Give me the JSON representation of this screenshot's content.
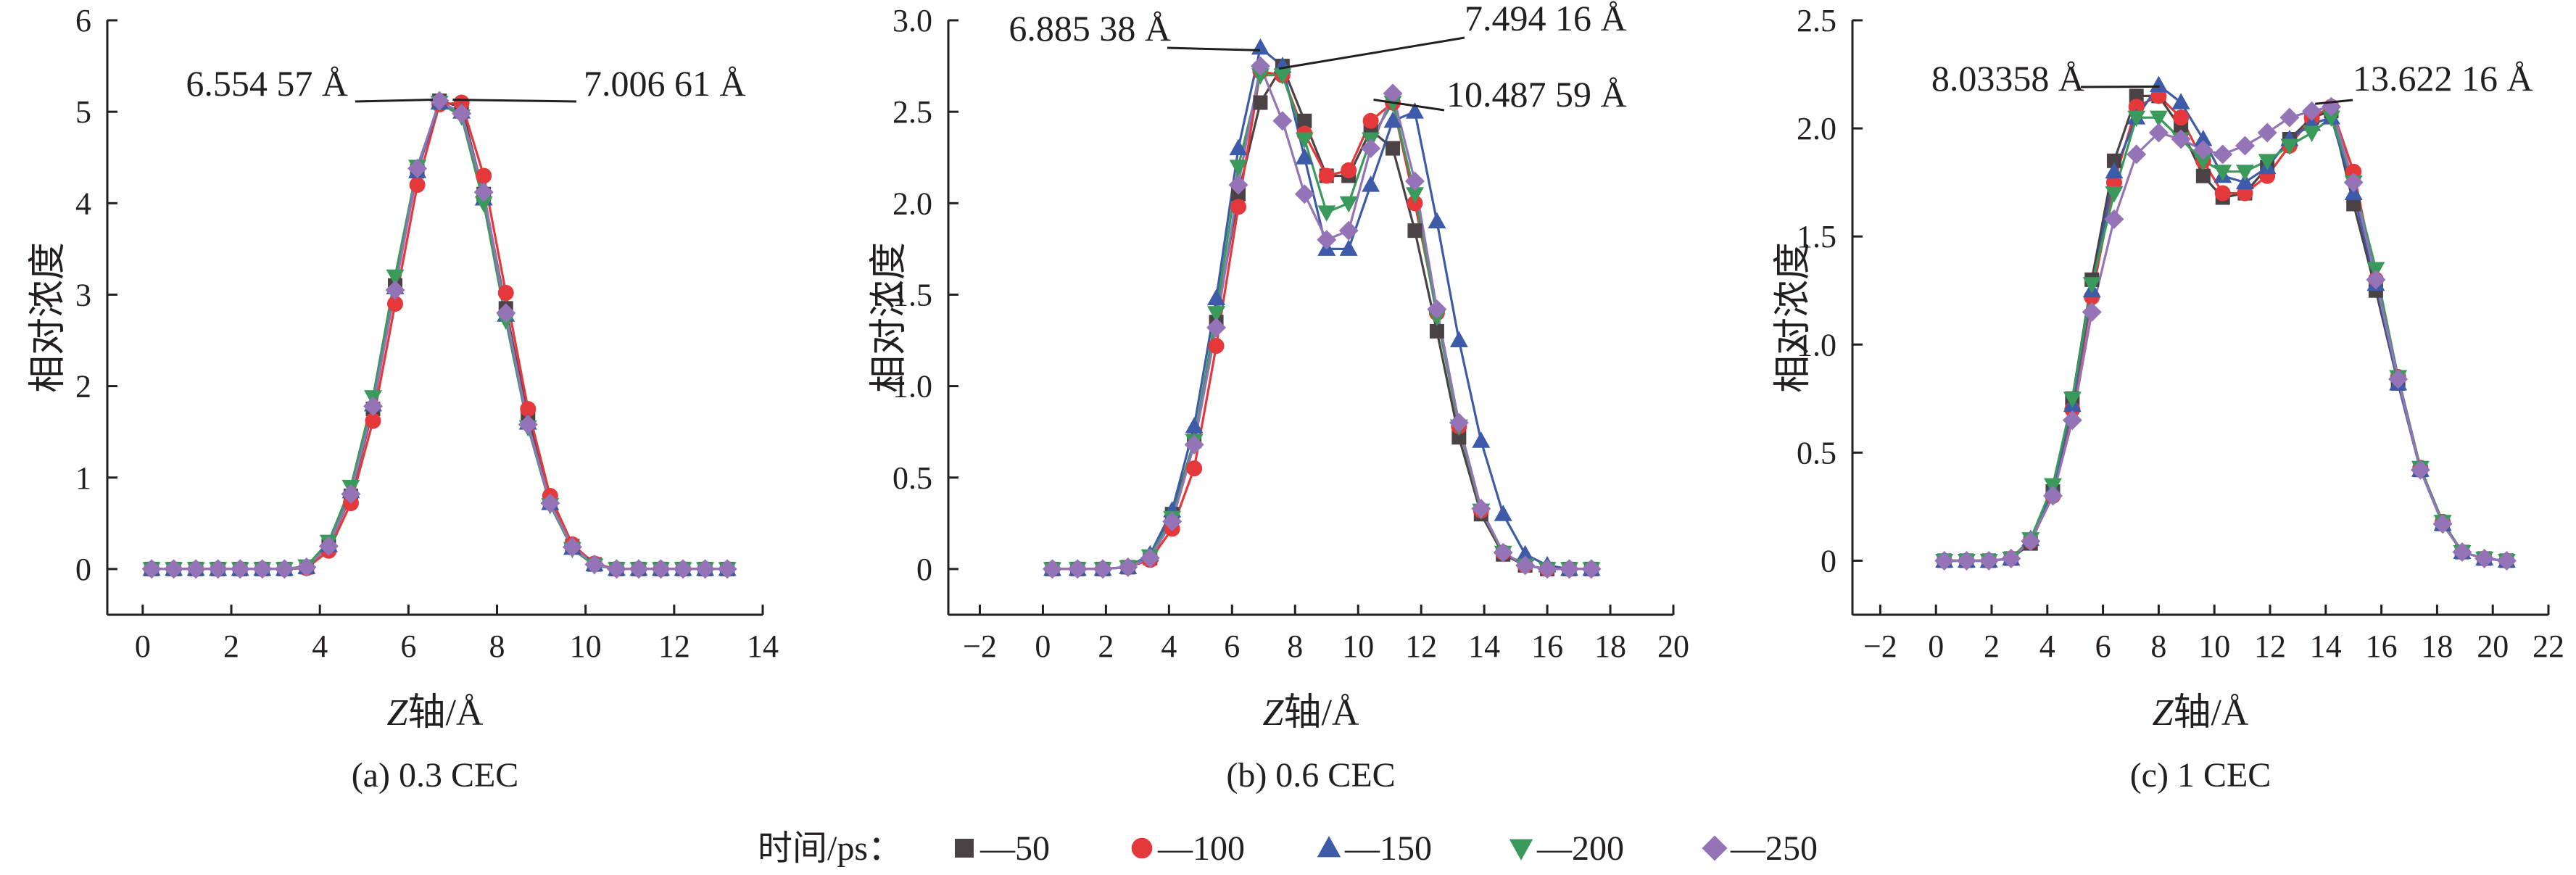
{
  "chart_data": [
    {
      "type": "line",
      "caption": "(a) 0.3 CEC",
      "xlabel_italic": "Z",
      "xlabel_rest": "轴/Å",
      "ylabel": "相对浓度",
      "xlim": [
        -0.8,
        14
      ],
      "ylim": [
        -0.5,
        6
      ],
      "xticks": [
        "0",
        "2",
        "4",
        "6",
        "8",
        "10",
        "12",
        "14"
      ],
      "yticks": [
        "0",
        "1",
        "2",
        "3",
        "4",
        "5",
        "6"
      ],
      "x": [
        0.2,
        0.7,
        1.2,
        1.7,
        2.2,
        2.7,
        3.2,
        3.7,
        4.2,
        4.7,
        5.2,
        5.7,
        6.2,
        6.7,
        7.2,
        7.7,
        8.2,
        8.7,
        9.2,
        9.7,
        10.2,
        10.7,
        11.2,
        11.7,
        12.2,
        12.7,
        13.2
      ],
      "series": [
        {
          "name": "50",
          "values": [
            0,
            0,
            0,
            0,
            0,
            0,
            0,
            0.02,
            0.25,
            0.8,
            1.75,
            3.1,
            4.35,
            5.12,
            5.05,
            4.1,
            2.85,
            1.65,
            0.75,
            0.25,
            0.05,
            0,
            0,
            0,
            0,
            0,
            0
          ]
        },
        {
          "name": "100",
          "values": [
            0,
            0,
            0,
            0,
            0,
            0,
            0,
            0.01,
            0.2,
            0.72,
            1.62,
            2.9,
            4.2,
            5.08,
            5.1,
            4.3,
            3.02,
            1.75,
            0.8,
            0.27,
            0.06,
            0,
            0,
            0,
            0,
            0,
            0
          ]
        },
        {
          "name": "150",
          "values": [
            0,
            0,
            0,
            0,
            0,
            0,
            0,
            0.02,
            0.26,
            0.85,
            1.8,
            3.08,
            4.35,
            5.1,
            5.0,
            4.05,
            2.78,
            1.6,
            0.72,
            0.23,
            0.05,
            0,
            0,
            0,
            0,
            0,
            0
          ]
        },
        {
          "name": "200",
          "values": [
            0,
            0,
            0,
            0,
            0,
            0,
            0,
            0.03,
            0.3,
            0.9,
            1.88,
            3.2,
            4.4,
            5.1,
            4.95,
            4.0,
            2.72,
            1.55,
            0.7,
            0.22,
            0.04,
            0,
            0,
            0,
            0,
            0,
            0
          ]
        },
        {
          "name": "250",
          "values": [
            0,
            0,
            0,
            0,
            0,
            0,
            0,
            0.02,
            0.25,
            0.82,
            1.78,
            3.05,
            4.38,
            5.12,
            4.98,
            4.12,
            2.8,
            1.58,
            0.72,
            0.24,
            0.05,
            0,
            0,
            0,
            0,
            0,
            0
          ]
        }
      ],
      "annotations": [
        {
          "text": "6.554 57 Å",
          "x": 6.55,
          "y": 5.1,
          "side": "left"
        },
        {
          "text": "7.006 61 Å",
          "x": 7.0,
          "y": 5.1,
          "side": "right"
        }
      ]
    },
    {
      "type": "line",
      "caption": "(b) 0.6 CEC",
      "xlabel_italic": "Z",
      "xlabel_rest": "轴/Å",
      "ylabel": "相对浓度",
      "xlim": [
        -3,
        20
      ],
      "ylim": [
        -0.25,
        3.0
      ],
      "xticks": [
        "−2",
        "0",
        "2",
        "4",
        "6",
        "8",
        "10",
        "12",
        "14",
        "16",
        "18",
        "20"
      ],
      "yticks": [
        "0",
        "0.5",
        "1.0",
        "1.5",
        "2.0",
        "2.5",
        "3.0"
      ],
      "x": [
        0.3,
        1.1,
        1.9,
        2.7,
        3.4,
        4.1,
        4.8,
        5.5,
        6.2,
        6.9,
        7.6,
        8.3,
        9.0,
        9.7,
        10.4,
        11.1,
        11.8,
        12.5,
        13.2,
        13.9,
        14.6,
        15.3,
        16.0,
        16.7,
        17.4
      ],
      "series": [
        {
          "name": "50",
          "values": [
            0,
            0,
            0,
            0.01,
            0.06,
            0.3,
            0.7,
            1.35,
            2.05,
            2.55,
            2.75,
            2.45,
            2.15,
            2.15,
            2.4,
            2.3,
            1.85,
            1.3,
            0.72,
            0.3,
            0.08,
            0.02,
            0,
            0,
            0
          ]
        },
        {
          "name": "100",
          "values": [
            0,
            0,
            0,
            0.01,
            0.05,
            0.22,
            0.55,
            1.22,
            1.98,
            2.72,
            2.7,
            2.38,
            2.15,
            2.18,
            2.45,
            2.55,
            2.0,
            1.4,
            0.78,
            0.32,
            0.09,
            0.02,
            0,
            0,
            0
          ]
        },
        {
          "name": "150",
          "values": [
            0,
            0,
            0,
            0.01,
            0.08,
            0.32,
            0.78,
            1.48,
            2.3,
            2.85,
            2.75,
            2.25,
            1.75,
            1.75,
            2.1,
            2.45,
            2.5,
            1.9,
            1.25,
            0.7,
            0.3,
            0.08,
            0.02,
            0,
            0
          ]
        },
        {
          "name": "200",
          "values": [
            0,
            0,
            0,
            0.01,
            0.07,
            0.28,
            0.7,
            1.4,
            2.2,
            2.7,
            2.7,
            2.35,
            1.95,
            2.0,
            2.35,
            2.55,
            2.05,
            1.38,
            0.78,
            0.32,
            0.09,
            0.02,
            0,
            0,
            0
          ]
        },
        {
          "name": "250",
          "values": [
            0,
            0,
            0,
            0.01,
            0.06,
            0.26,
            0.68,
            1.32,
            2.1,
            2.75,
            2.45,
            2.05,
            1.8,
            1.85,
            2.3,
            2.6,
            2.12,
            1.42,
            0.8,
            0.33,
            0.09,
            0.02,
            0,
            0,
            0
          ]
        }
      ],
      "annotations": [
        {
          "text": "6.885 38 Å",
          "x": 6.89,
          "y": 2.82,
          "side": "left"
        },
        {
          "text": "7.494 16 Å",
          "x": 7.49,
          "y": 2.72,
          "side": "right"
        },
        {
          "text": "10.487 59 Å",
          "x": 10.49,
          "y": 2.55,
          "side": "right"
        }
      ]
    },
    {
      "type": "line",
      "caption": "(c) 1 CEC",
      "xlabel_italic": "Z",
      "xlabel_rest": "轴/Å",
      "ylabel": "相对浓度",
      "xlim": [
        -3,
        22
      ],
      "ylim": [
        -0.25,
        2.5
      ],
      "xticks": [
        "−2",
        "0",
        "2",
        "4",
        "6",
        "8",
        "10",
        "12",
        "14",
        "16",
        "18",
        "20",
        "22"
      ],
      "yticks": [
        "0",
        "0.5",
        "1.0",
        "1.5",
        "2.0",
        "2.5"
      ],
      "x": [
        0.3,
        1.1,
        1.9,
        2.7,
        3.4,
        4.2,
        4.9,
        5.6,
        6.4,
        7.2,
        8.0,
        8.8,
        9.6,
        10.3,
        11.1,
        11.9,
        12.7,
        13.5,
        14.2,
        15.0,
        15.8,
        16.6,
        17.4,
        18.2,
        18.9,
        19.7,
        20.5
      ],
      "series": [
        {
          "name": "50",
          "values": [
            0,
            0,
            0,
            0.01,
            0.08,
            0.32,
            0.75,
            1.3,
            1.85,
            2.15,
            2.15,
            2.0,
            1.78,
            1.68,
            1.7,
            1.82,
            1.95,
            2.05,
            2.08,
            1.65,
            1.25,
            0.82,
            0.42,
            0.17,
            0.04,
            0.01,
            0
          ]
        },
        {
          "name": "100",
          "values": [
            0,
            0,
            0,
            0.01,
            0.09,
            0.3,
            0.7,
            1.22,
            1.75,
            2.1,
            2.15,
            2.05,
            1.85,
            1.7,
            1.7,
            1.78,
            1.92,
            2.05,
            2.1,
            1.8,
            1.3,
            0.85,
            0.43,
            0.18,
            0.04,
            0.01,
            0
          ]
        },
        {
          "name": "150",
          "values": [
            0,
            0,
            0,
            0.01,
            0.1,
            0.33,
            0.72,
            1.25,
            1.8,
            2.05,
            2.2,
            2.12,
            1.95,
            1.78,
            1.75,
            1.82,
            1.95,
            2.02,
            2.05,
            1.7,
            1.28,
            0.82,
            0.42,
            0.17,
            0.04,
            0.01,
            0
          ]
        },
        {
          "name": "200",
          "values": [
            0,
            0,
            0,
            0.01,
            0.1,
            0.35,
            0.75,
            1.28,
            1.7,
            2.05,
            2.05,
            1.95,
            1.85,
            1.8,
            1.8,
            1.85,
            1.92,
            1.98,
            2.05,
            1.75,
            1.35,
            0.85,
            0.43,
            0.18,
            0.04,
            0.01,
            0
          ]
        },
        {
          "name": "250",
          "values": [
            0,
            0,
            0,
            0.01,
            0.09,
            0.3,
            0.65,
            1.15,
            1.58,
            1.88,
            1.98,
            1.95,
            1.9,
            1.88,
            1.92,
            1.98,
            2.05,
            2.08,
            2.1,
            1.75,
            1.3,
            0.84,
            0.42,
            0.17,
            0.04,
            0.01,
            0
          ]
        }
      ],
      "annotations": [
        {
          "text": "8.03358  Å",
          "x": 8.03,
          "y": 2.18,
          "side": "left"
        },
        {
          "text": "13.622 16 Å",
          "x": 13.62,
          "y": 2.1,
          "side": "right"
        }
      ]
    }
  ],
  "legend": {
    "title": "时间/ps：",
    "items": [
      {
        "label": "—50",
        "color": "#4a4245",
        "marker": "square"
      },
      {
        "label": "—100",
        "color": "#e5383b",
        "marker": "circle"
      },
      {
        "label": "—150",
        "color": "#3d5ba9",
        "marker": "triangle-up"
      },
      {
        "label": "—200",
        "color": "#3a9a5b",
        "marker": "triangle-down"
      },
      {
        "label": "—250",
        "color": "#9474b6",
        "marker": "diamond"
      }
    ]
  }
}
